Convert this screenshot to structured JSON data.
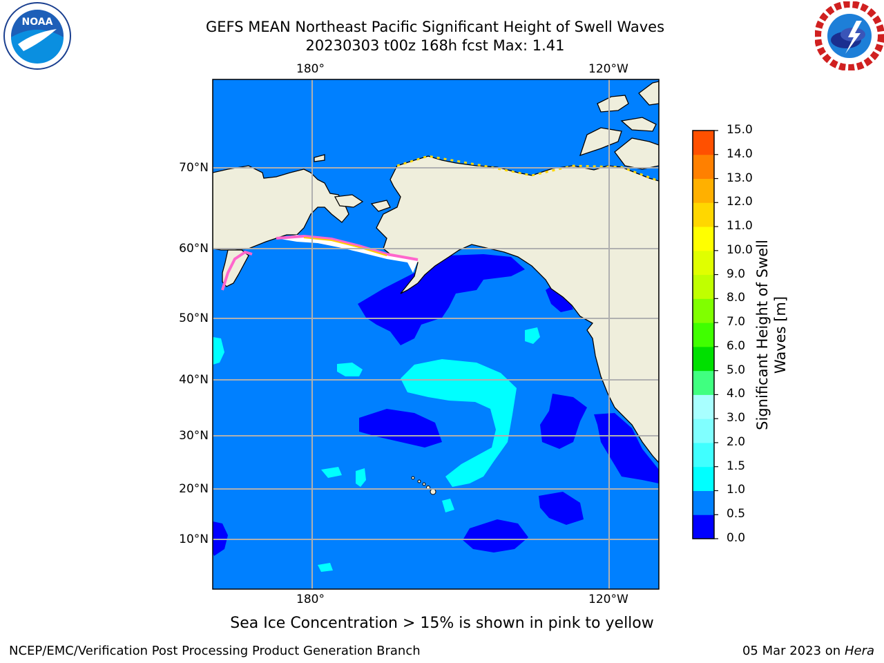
{
  "title_line1": "GEFS MEAN Northeast Pacific Significant Height of Swell Waves",
  "title_line2": "20230303 t00z 168h fcst   Max: 1.41",
  "logos": {
    "left": "NOAA",
    "right": "NATIONAL WEATHER SERVICE"
  },
  "map": {
    "lon_labels": [
      "180°",
      "120°W"
    ],
    "lat_labels": [
      "70°N",
      "60°N",
      "50°N",
      "40°N",
      "30°N",
      "20°N",
      "10°N"
    ],
    "colors": {
      "land": "#efeedc",
      "ocean": "#0080ff",
      "low": "#0000ff",
      "mid": "#00ffff",
      "grid": "#b0b0b0"
    }
  },
  "colorbar": {
    "label": "Significant Height of Swell Waves [m]",
    "ticks": [
      "15.0",
      "14.0",
      "13.0",
      "12.0",
      "11.0",
      "10.0",
      "9.0",
      "8.0",
      "7.0",
      "6.0",
      "5.0",
      "4.0",
      "3.0",
      "2.0",
      "1.5",
      "1.0",
      "0.5",
      "0.0"
    ],
    "colors": [
      "#0000ff",
      "#0080ff",
      "#00ffff",
      "#40ffff",
      "#80ffff",
      "#a8ffff",
      "#40ff80",
      "#00e000",
      "#40ff00",
      "#80ff00",
      "#c0ff00",
      "#e0ff00",
      "#ffff00",
      "#ffd700",
      "#ffb000",
      "#ff8000",
      "#ff5000",
      "#ff2000",
      "#ff0000"
    ]
  },
  "sea_ice_note": "Sea Ice Concentration > 15% is shown in pink to yellow",
  "footer_left": "NCEP/EMC/Verification Post Processing Product Generation Branch",
  "footer_right_date": "05 Mar 2023 on",
  "footer_right_host": "Hera"
}
